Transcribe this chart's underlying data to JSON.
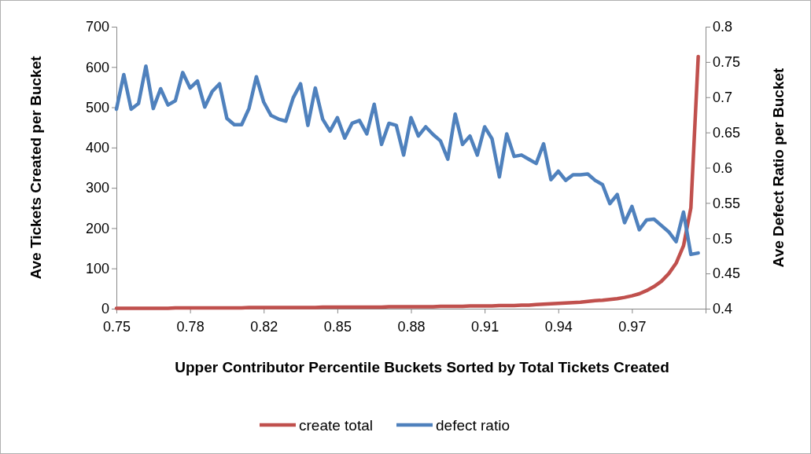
{
  "chart_data": {
    "type": "line",
    "xlabel": "Upper Contributor Percentile Buckets Sorted by Total Tickets Created",
    "ylabel": "Ave Tickets Created per Bucket",
    "y2label": "Ave Defect Ratio per Bucket",
    "categories": [
      "0.75",
      null,
      null,
      null,
      null,
      null,
      null,
      null,
      null,
      null,
      "0.78",
      null,
      null,
      null,
      null,
      null,
      null,
      null,
      null,
      null,
      "0.82",
      null,
      null,
      null,
      null,
      null,
      null,
      null,
      null,
      null,
      "0.85",
      null,
      null,
      null,
      null,
      null,
      null,
      null,
      null,
      null,
      "0.88",
      null,
      null,
      null,
      null,
      null,
      null,
      null,
      null,
      null,
      "0.91",
      null,
      null,
      null,
      null,
      null,
      null,
      null,
      null,
      null,
      "0.94",
      null,
      null,
      null,
      null,
      null,
      null,
      null,
      null,
      null,
      "0.97",
      null,
      null,
      null,
      null,
      null,
      null,
      null,
      null,
      null
    ],
    "series": [
      {
        "name": "create total",
        "color": "#c0504d",
        "values": [
          1,
          1,
          1,
          1,
          1,
          1,
          1,
          1,
          2,
          2,
          2,
          2,
          2,
          2,
          2,
          2,
          2,
          2,
          3,
          3,
          3,
          3,
          3,
          3,
          3,
          3,
          3,
          3,
          4,
          4,
          4,
          4,
          4,
          4,
          4,
          4,
          4,
          5,
          5,
          5,
          5,
          5,
          5,
          5,
          6,
          6,
          6,
          6,
          7,
          7,
          7,
          7,
          8,
          8,
          8,
          9,
          9,
          10,
          11,
          12,
          13,
          14,
          15,
          16,
          18,
          20,
          21,
          23,
          25,
          28,
          32,
          37,
          45,
          55,
          68,
          87,
          113,
          156,
          250,
          626
        ]
      },
      {
        "name": "defect ratio",
        "color": "#4f81bd",
        "axis": "y2",
        "values": [
          0.683,
          0.732,
          0.683,
          0.691,
          0.744,
          0.684,
          0.712,
          0.689,
          0.695,
          0.735,
          0.713,
          0.723,
          0.686,
          0.708,
          0.719,
          0.67,
          0.661,
          0.661,
          0.684,
          0.729,
          0.693,
          0.674,
          0.669,
          0.666,
          0.699,
          0.719,
          0.66,
          0.713,
          0.669,
          0.652,
          0.671,
          0.642,
          0.663,
          0.667,
          0.648,
          0.69,
          0.633,
          0.663,
          0.66,
          0.618,
          0.671,
          0.645,
          0.658,
          0.647,
          0.638,
          0.612,
          0.676,
          0.633,
          0.645,
          0.618,
          0.658,
          0.641,
          0.587,
          0.648,
          0.616,
          0.618,
          0.612,
          0.606,
          0.634,
          0.583,
          0.595,
          0.582,
          0.59,
          0.59,
          0.591,
          0.582,
          0.576,
          0.549,
          0.562,
          0.522,
          0.545,
          0.512,
          0.526,
          0.527,
          0.518,
          0.509,
          0.495,
          0.537,
          0.477,
          0.479
        ]
      }
    ],
    "ylim": [
      0,
      700
    ],
    "yticks": [
      0,
      100,
      200,
      300,
      400,
      500,
      600,
      700
    ],
    "y2lim": [
      0.4,
      0.8
    ],
    "y2ticks": [
      {
        "value": 0.4,
        "label": "0.4"
      },
      {
        "value": 0.45,
        "label": "0.45"
      },
      {
        "value": 0.5,
        "label": "0.5"
      },
      {
        "value": 0.55,
        "label": "0.55"
      },
      {
        "value": 0.6,
        "label": "0.6"
      },
      {
        "value": 0.65,
        "label": "0.65"
      },
      {
        "value": 0.7,
        "label": "0.7"
      },
      {
        "value": 0.75,
        "label": "0.75"
      },
      {
        "value": 0.8,
        "label": "0.8"
      }
    ],
    "grid": false,
    "legend": "bottom",
    "marker": "none",
    "line_style": "solid"
  }
}
